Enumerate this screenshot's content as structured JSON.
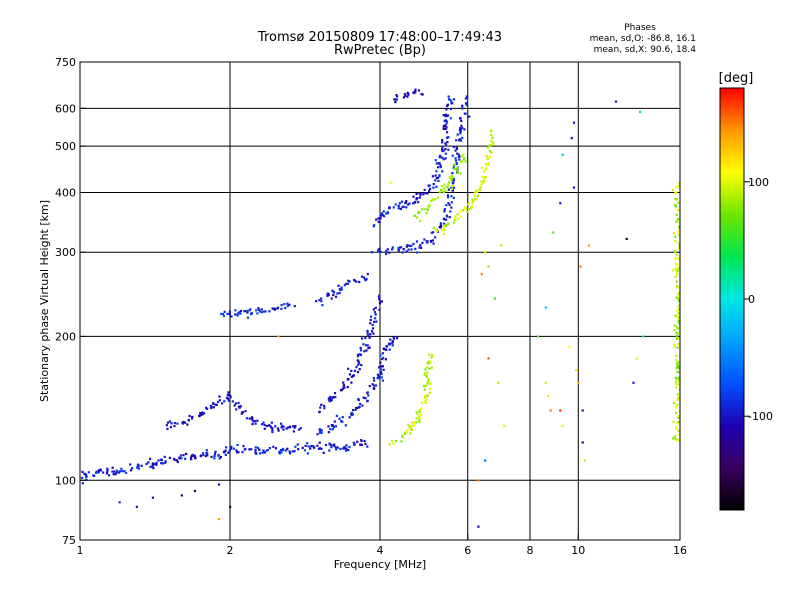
{
  "header": {
    "title_line1": "Tromsø 20150809 17:48:00–17:49:43",
    "title_line2": "RwPretec (Bp)",
    "phases_title": "Phases",
    "phases_o": "mean, sd,O: -86.8, 16.1",
    "phases_x": "mean, sd,X:  90.6, 18.4"
  },
  "colorbar": {
    "unit": "[deg]",
    "ticks": [
      {
        "value": 100,
        "label": "100"
      },
      {
        "value": 0,
        "label": "0"
      },
      {
        "value": -100,
        "label": "-100"
      }
    ],
    "range": [
      -180,
      180
    ],
    "palette": [
      "#000000",
      "#3a0060",
      "#1e00b4",
      "#0050ff",
      "#00a0ff",
      "#00e6e6",
      "#00e650",
      "#6ee600",
      "#ffff00",
      "#ff9600",
      "#ff0000"
    ]
  },
  "chart_data": {
    "type": "scatter",
    "title": "Tromsø 20150809 17:48:00–17:49:43",
    "subtitle": "RwPretec (Bp)",
    "xlabel": "Frequency [MHz]",
    "ylabel": "Stationary phase Virtual Height [km]",
    "x_scale": "log",
    "y_scale": "log",
    "xlim": [
      1,
      16
    ],
    "ylim": [
      75,
      750
    ],
    "x_ticks": [
      1,
      2,
      4,
      6,
      8,
      10,
      16
    ],
    "y_ticks": [
      75,
      100,
      200,
      300,
      400,
      500,
      600,
      750
    ],
    "grid_x": [
      2,
      4,
      6,
      8,
      10
    ],
    "grid_y": [
      100,
      200,
      300,
      400,
      500,
      600
    ],
    "color_scale": "phase [deg]",
    "traces": [
      {
        "mode": "O",
        "phase": -95,
        "spread": 16,
        "points": [
          [
            1.0,
            100
          ],
          [
            1.05,
            103
          ],
          [
            1.1,
            104
          ],
          [
            1.2,
            105
          ],
          [
            1.3,
            107
          ],
          [
            1.4,
            108
          ],
          [
            1.5,
            110
          ],
          [
            1.6,
            111
          ],
          [
            1.7,
            113
          ],
          [
            1.8,
            113
          ],
          [
            1.9,
            114
          ],
          [
            2.0,
            115
          ],
          [
            2.2,
            115
          ],
          [
            2.4,
            116
          ],
          [
            2.6,
            116
          ],
          [
            2.8,
            117
          ],
          [
            3.0,
            117
          ],
          [
            3.2,
            118
          ],
          [
            3.4,
            118
          ],
          [
            3.6,
            119
          ],
          [
            3.8,
            121
          ]
        ]
      },
      {
        "mode": "O",
        "phase": -100,
        "spread": 14,
        "points": [
          [
            1.5,
            130
          ],
          [
            1.6,
            133
          ],
          [
            1.7,
            136
          ],
          [
            1.8,
            140
          ],
          [
            1.9,
            145
          ],
          [
            2.0,
            150
          ],
          [
            2.1,
            140
          ],
          [
            2.2,
            135
          ],
          [
            2.4,
            130
          ],
          [
            2.6,
            128
          ],
          [
            2.8,
            127
          ]
        ]
      },
      {
        "mode": "O",
        "phase": -95,
        "spread": 14,
        "points": [
          [
            3.0,
            125
          ],
          [
            3.2,
            130
          ],
          [
            3.4,
            135
          ],
          [
            3.6,
            142
          ],
          [
            3.8,
            152
          ],
          [
            4.0,
            168
          ],
          [
            4.1,
            185
          ],
          [
            4.2,
            195
          ],
          [
            4.3,
            200
          ]
        ]
      },
      {
        "mode": "O",
        "phase": -100,
        "spread": 14,
        "points": [
          [
            3.0,
            140
          ],
          [
            3.2,
            148
          ],
          [
            3.4,
            158
          ],
          [
            3.6,
            172
          ],
          [
            3.7,
            185
          ],
          [
            3.8,
            200
          ],
          [
            3.9,
            220
          ],
          [
            4.0,
            245
          ]
        ]
      },
      {
        "mode": "O",
        "phase": -90,
        "spread": 14,
        "points": [
          [
            1.95,
            222
          ],
          [
            2.1,
            223
          ],
          [
            2.3,
            227
          ],
          [
            2.5,
            230
          ],
          [
            2.7,
            233
          ]
        ]
      },
      {
        "mode": "O",
        "phase": -95,
        "spread": 14,
        "points": [
          [
            3.0,
            235
          ],
          [
            3.2,
            245
          ],
          [
            3.4,
            255
          ],
          [
            3.6,
            262
          ],
          [
            3.8,
            268
          ]
        ]
      },
      {
        "mode": "O",
        "phase": -92,
        "spread": 16,
        "points": [
          [
            3.9,
            302
          ],
          [
            4.1,
            303
          ],
          [
            4.4,
            304
          ],
          [
            4.7,
            308
          ],
          [
            5.0,
            315
          ],
          [
            5.2,
            330
          ],
          [
            5.4,
            350
          ],
          [
            5.5,
            380
          ],
          [
            5.6,
            420
          ],
          [
            5.7,
            470
          ],
          [
            5.8,
            530
          ],
          [
            5.9,
            600
          ],
          [
            6.0,
            640
          ]
        ]
      },
      {
        "mode": "O",
        "phase": -95,
        "spread": 16,
        "points": [
          [
            3.9,
            340
          ],
          [
            4.0,
            360
          ],
          [
            4.2,
            370
          ],
          [
            4.4,
            375
          ],
          [
            4.6,
            380
          ],
          [
            4.8,
            390
          ],
          [
            5.0,
            400
          ],
          [
            5.2,
            420
          ],
          [
            5.3,
            460
          ],
          [
            5.4,
            520
          ],
          [
            5.5,
            600
          ],
          [
            5.6,
            640
          ]
        ]
      },
      {
        "mode": "O",
        "phase": -100,
        "spread": 12,
        "points": [
          [
            4.3,
            630
          ],
          [
            4.5,
            640
          ],
          [
            4.7,
            645
          ],
          [
            4.9,
            650
          ]
        ]
      },
      {
        "mode": "X",
        "phase": 90,
        "spread": 18,
        "points": [
          [
            4.2,
            120
          ],
          [
            4.4,
            123
          ],
          [
            4.6,
            128
          ],
          [
            4.8,
            135
          ],
          [
            4.9,
            145
          ],
          [
            5.0,
            155
          ],
          [
            5.0,
            170
          ],
          [
            5.1,
            185
          ]
        ]
      },
      {
        "mode": "X",
        "phase": 95,
        "spread": 18,
        "points": [
          [
            5.2,
            330
          ],
          [
            5.5,
            345
          ],
          [
            5.8,
            360
          ],
          [
            6.1,
            380
          ],
          [
            6.3,
            400
          ],
          [
            6.5,
            430
          ],
          [
            6.6,
            480
          ],
          [
            6.7,
            540
          ]
        ]
      },
      {
        "mode": "X",
        "phase": 80,
        "spread": 15,
        "points": [
          [
            4.7,
            360
          ],
          [
            5.0,
            370
          ],
          [
            5.2,
            390
          ],
          [
            5.5,
            420
          ],
          [
            5.7,
            450
          ],
          [
            5.9,
            480
          ]
        ]
      },
      {
        "mode": "X",
        "phase": 90,
        "spread": 25,
        "points": [
          [
            15.8,
            120
          ],
          [
            15.9,
            150
          ],
          [
            15.8,
            200
          ],
          [
            15.9,
            250
          ],
          [
            15.8,
            300
          ],
          [
            15.8,
            350
          ],
          [
            15.9,
            420
          ]
        ]
      }
    ],
    "scattered_points": [
      [
        6.5,
        300,
        95
      ],
      [
        6.6,
        280,
        80
      ],
      [
        6.4,
        270,
        150
      ],
      [
        6.8,
        240,
        60
      ],
      [
        7.0,
        310,
        90
      ],
      [
        6.6,
        180,
        160
      ],
      [
        6.9,
        160,
        90
      ],
      [
        7.1,
        130,
        100
      ],
      [
        6.5,
        110,
        -60
      ],
      [
        6.3,
        100,
        150
      ],
      [
        8.3,
        200,
        60
      ],
      [
        8.6,
        160,
        90
      ],
      [
        8.7,
        150,
        120
      ],
      [
        8.8,
        140,
        150
      ],
      [
        8.6,
        230,
        -20
      ],
      [
        8.9,
        330,
        70
      ],
      [
        9.2,
        140,
        170
      ],
      [
        9.3,
        130,
        100
      ],
      [
        9.3,
        480,
        -20
      ],
      [
        9.2,
        380,
        -100
      ],
      [
        9.6,
        190,
        110
      ],
      [
        9.9,
        170,
        120
      ],
      [
        10.0,
        160,
        140
      ],
      [
        10.2,
        140,
        -100
      ],
      [
        10.2,
        120,
        -120
      ],
      [
        10.3,
        110,
        90
      ],
      [
        9.8,
        410,
        -100
      ],
      [
        10.1,
        280,
        150
      ],
      [
        10.5,
        310,
        140
      ],
      [
        11.9,
        620,
        -100
      ],
      [
        12.9,
        160,
        -100
      ],
      [
        13.1,
        180,
        100
      ],
      [
        13.3,
        590,
        20
      ],
      [
        13.5,
        200,
        20
      ],
      [
        12.5,
        320,
        -160
      ],
      [
        9.8,
        560,
        -100
      ],
      [
        9.7,
        520,
        -100
      ],
      [
        1.2,
        90,
        -90
      ],
      [
        1.4,
        92,
        -100
      ],
      [
        1.7,
        95,
        -140
      ],
      [
        1.9,
        83,
        140
      ],
      [
        2.0,
        88,
        -150
      ],
      [
        1.9,
        98,
        -120
      ],
      [
        1.6,
        93,
        -110
      ],
      [
        1.3,
        88,
        -100
      ],
      [
        2.5,
        200,
        140
      ],
      [
        4.2,
        420,
        110
      ],
      [
        6.3,
        80,
        -110
      ]
    ]
  }
}
